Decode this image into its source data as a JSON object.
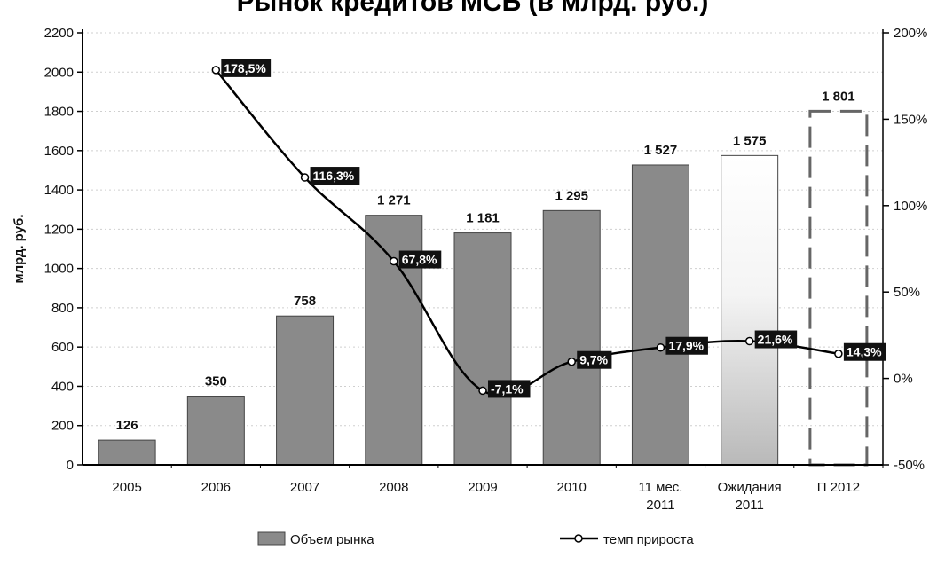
{
  "chart_data": {
    "type": "bar",
    "title": "",
    "ylabel": "млрд. руб.",
    "ylim": [
      0,
      2200
    ],
    "yticks": [
      0,
      200,
      400,
      600,
      800,
      1000,
      1200,
      1400,
      1600,
      1800,
      2000,
      2200
    ],
    "y2lim": [
      -50,
      200
    ],
    "y2ticks": [
      "-50%",
      "0%",
      "50%",
      "100%",
      "150%",
      "200%"
    ],
    "grid": true,
    "legend_position": "bottom",
    "categories": [
      {
        "line1": "2005",
        "line2": ""
      },
      {
        "line1": "2006",
        "line2": ""
      },
      {
        "line1": "2007",
        "line2": ""
      },
      {
        "line1": "2008",
        "line2": ""
      },
      {
        "line1": "2009",
        "line2": ""
      },
      {
        "line1": "2010",
        "line2": ""
      },
      {
        "line1": "11 мес.",
        "line2": "2011"
      },
      {
        "line1": "Ожидания",
        "line2": "2011"
      },
      {
        "line1": "П 2012",
        "line2": ""
      }
    ],
    "series": [
      {
        "name": "Объем рынка",
        "kind": "bar",
        "color": "#8a8a8a",
        "values": [
          126,
          350,
          758,
          1271,
          1181,
          1295,
          1527,
          1575,
          1801
        ],
        "labels": [
          "126",
          "350",
          "758",
          "1 271",
          "1 181",
          "1 295",
          "1 527",
          "1 575",
          "1 801"
        ],
        "styles": [
          "solid",
          "solid",
          "solid",
          "solid",
          "solid",
          "solid",
          "solid",
          "gradient",
          "dashed"
        ]
      },
      {
        "name": "темп прироста",
        "kind": "line",
        "axis": "right",
        "color": "#000000",
        "values": [
          null,
          178.5,
          116.3,
          67.8,
          -7.1,
          9.7,
          17.9,
          21.6,
          14.3
        ],
        "labels": [
          "",
          "178,5%",
          "116,3%",
          "67,8%",
          "-7,1%",
          "9,7%",
          "17,9%",
          "21,6%",
          "14,3%"
        ]
      }
    ]
  }
}
